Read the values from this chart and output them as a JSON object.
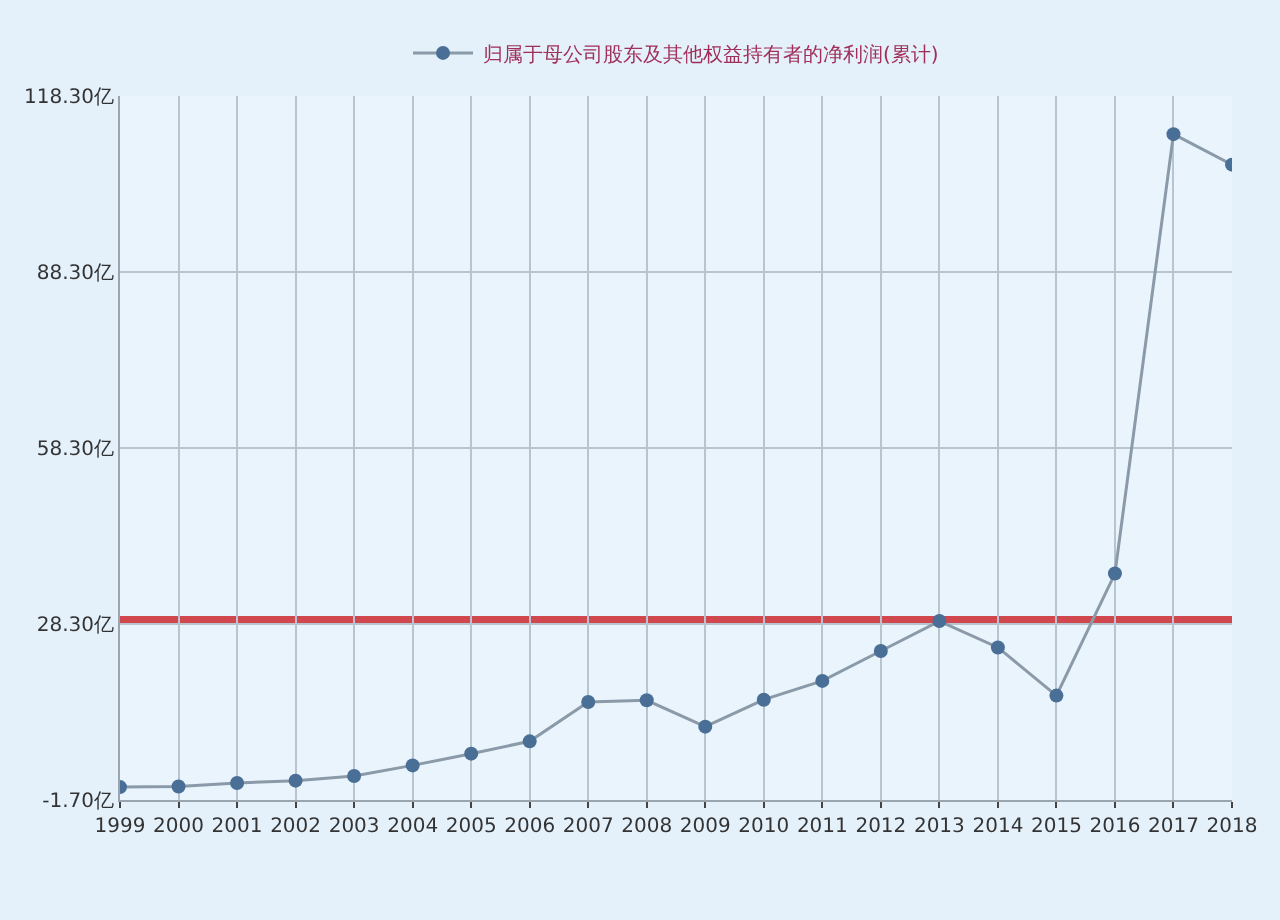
{
  "chart_data": {
    "type": "line",
    "x": [
      1999,
      2000,
      2001,
      2002,
      2003,
      2004,
      2005,
      2006,
      2007,
      2008,
      2009,
      2010,
      2011,
      2012,
      2013,
      2014,
      2015,
      2016,
      2017,
      2018
    ],
    "series": [
      {
        "name": "归属于母公司股东及其他权益持有者的净利润(累计)",
        "color": "#4a6f96",
        "values": [
          0.5,
          0.6,
          1.2,
          1.6,
          2.4,
          4.2,
          6.2,
          8.3,
          15.0,
          15.3,
          10.8,
          15.4,
          18.6,
          23.7,
          28.8,
          24.3,
          16.1,
          36.9,
          111.8,
          106.6
        ]
      }
    ],
    "xlim": [
      1999,
      2018
    ],
    "xticks": [
      1999,
      2000,
      2001,
      2002,
      2003,
      2004,
      2005,
      2006,
      2007,
      2008,
      2009,
      2010,
      2011,
      2012,
      2013,
      2014,
      2015,
      2016,
      2017,
      2018
    ],
    "ylim": [
      -1.7,
      118.3
    ],
    "yticks": [
      {
        "value": -1.7,
        "label": "-1.70亿"
      },
      {
        "value": 28.3,
        "label": "28.30亿"
      },
      {
        "value": 58.3,
        "label": "58.30亿"
      },
      {
        "value": 88.3,
        "label": "88.30亿"
      },
      {
        "value": 118.3,
        "label": "118.30亿"
      }
    ],
    "ref_lines": [
      {
        "axis": "y",
        "value": 29,
        "color": "#d0484e"
      }
    ],
    "grid": true,
    "legend": "top",
    "marker": "circle",
    "line_style": "solid"
  }
}
